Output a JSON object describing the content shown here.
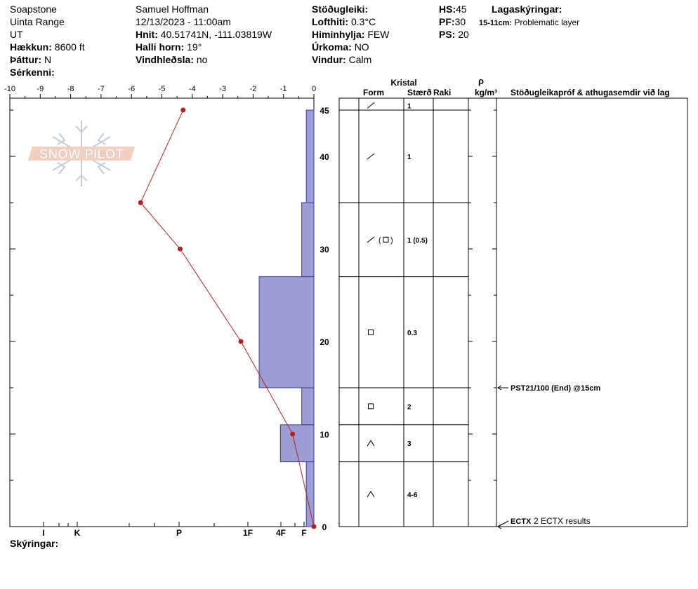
{
  "header": {
    "location": "Soapstone",
    "range": "Uinta Range",
    "state": "UT",
    "elevation_label": "Hækkun:",
    "elevation": "8600 ft",
    "aspect_label": "Þáttur:",
    "aspect": "N",
    "features_label": "Sérkenni:",
    "observer": "Samuel Hoffman",
    "datetime": "12/13/2023 - 11:00am",
    "coords_label": "Hnit:",
    "coords": "40.51741N, -111.03819W",
    "slope_label": "Halli horn:",
    "slope": "19°",
    "wind_loading_label": "Vindhleðsla:",
    "wind_loading": "no",
    "stability_label": "Stöðugleiki:",
    "air_temp_label": "Lofthiti:",
    "air_temp": "0.3°C",
    "sky_label": "Himinhylja:",
    "sky": "FEW",
    "precip_label": "Úrkoma:",
    "precip": "NO",
    "wind_label": "Vindur:",
    "wind": "Calm",
    "hs_label": "HS:",
    "hs": "45",
    "pf_label": "PF:",
    "pf": "30",
    "ps_label": "PS:",
    "ps": "20",
    "layer_notes_label": "Lagaskýringar:",
    "layer_note_range": "15-11cm:",
    "layer_note_text": "Problematic layer",
    "notes_label": "Skýringar:"
  },
  "logo_text": "SNOW PILOT",
  "columns": {
    "crystal": "Kristal",
    "form": "Form",
    "size": "Stærð",
    "moisture": "Raki",
    "rho": "ρ",
    "density_unit": "kg/m³",
    "tests": "Stöðugleikapróf & athugasemdir við lag"
  },
  "chart_data": {
    "type": "snow-profile",
    "temperature_axis": {
      "ticks": [
        "-10",
        "-9",
        "-8",
        "-7",
        "-6",
        "-5",
        "-4",
        "-3",
        "-2",
        "-1",
        "0"
      ],
      "range": [
        -10,
        0
      ]
    },
    "depth_axis": {
      "ticks": [
        "45",
        "40",
        "30",
        "20",
        "10",
        "0"
      ],
      "range": [
        0,
        46
      ]
    },
    "hardness_axis": {
      "labels": [
        "I",
        "K",
        "P",
        "1F",
        "4F",
        "F"
      ]
    },
    "temperature_profile": [
      {
        "depth": 45,
        "temp": -4.3
      },
      {
        "depth": 35,
        "temp": -5.7
      },
      {
        "depth": 30,
        "temp": -4.4
      },
      {
        "depth": 20,
        "temp": -2.4
      },
      {
        "depth": 10,
        "temp": -0.7
      },
      {
        "depth": 0,
        "temp": 0.0
      }
    ],
    "hardness_layers": [
      {
        "top": 45,
        "bottom": 35,
        "hardness": 0.25
      },
      {
        "top": 35,
        "bottom": 27,
        "hardness": 0.4
      },
      {
        "top": 27,
        "bottom": 15,
        "hardness": 1.8
      },
      {
        "top": 15,
        "bottom": 11,
        "hardness": 0.4
      },
      {
        "top": 11,
        "bottom": 7,
        "hardness": 1.1
      },
      {
        "top": 7,
        "bottom": 0,
        "hardness": 0.25
      }
    ],
    "layers": [
      {
        "top": 46,
        "bottom": 45,
        "form": "precip-particles",
        "size": "1"
      },
      {
        "top": 45,
        "bottom": 35,
        "form": "precip-particles",
        "size": "1"
      },
      {
        "top": 35,
        "bottom": 27,
        "form": "precip-particles-with-faceted",
        "size": "1 (0.5)"
      },
      {
        "top": 27,
        "bottom": 15,
        "form": "faceted-crystals",
        "size": "0.3"
      },
      {
        "top": 15,
        "bottom": 11,
        "form": "faceted-crystals",
        "size": "2"
      },
      {
        "top": 11,
        "bottom": 7,
        "form": "depth-hoar",
        "size": "3"
      },
      {
        "top": 7,
        "bottom": 0,
        "form": "depth-hoar",
        "size": "4-6"
      }
    ],
    "tests": [
      {
        "depth": 15,
        "label": "PST21/100 (End) @15cm",
        "extra": ""
      },
      {
        "depth": 0,
        "label": "ECTX",
        "extra": "2 ECTX results"
      }
    ]
  }
}
